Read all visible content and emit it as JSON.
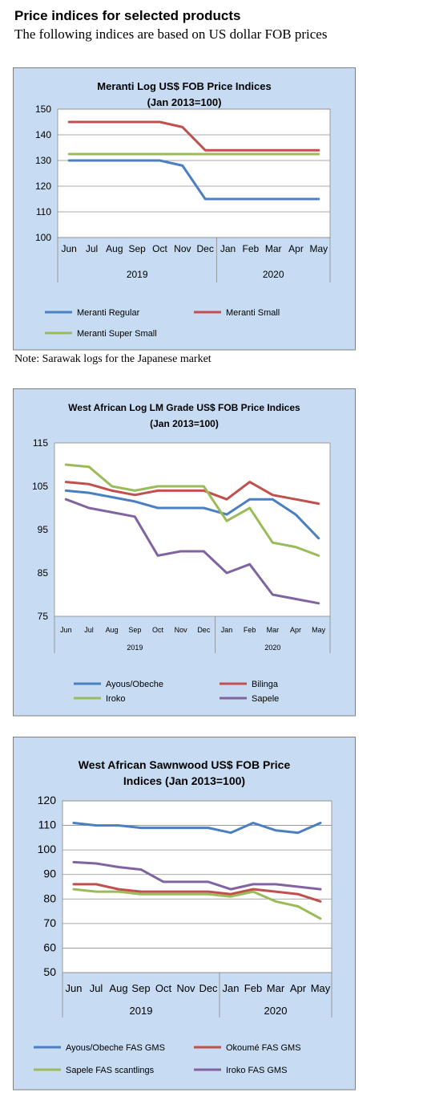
{
  "page": {
    "heading": "Price indices for selected products",
    "subheading": "The following indices are based on US dollar FOB prices",
    "note": "Note: Sarawak logs for the Japanese market"
  },
  "colors": {
    "panel_bg": "#c7dcf2",
    "blue": "#4a7fc1",
    "red": "#c0504d",
    "green": "#9bbb59",
    "purple": "#8064a2"
  },
  "chart_data": [
    {
      "type": "line",
      "title": "Meranti Log US$ FOB Price Indices",
      "subtitle": "(Jan 2013=100)",
      "categories": [
        "Jun",
        "Jul",
        "Aug",
        "Sep",
        "Oct",
        "Nov",
        "Dec",
        "Jan",
        "Feb",
        "Mar",
        "Apr",
        "May"
      ],
      "groups": [
        {
          "label": "2019",
          "from": 0,
          "to": 6
        },
        {
          "label": "2020",
          "from": 7,
          "to": 11
        }
      ],
      "yticks": [
        100,
        110,
        120,
        130,
        140,
        150
      ],
      "ylim": [
        100,
        150
      ],
      "grid": true,
      "legend_position": "bottom",
      "series": [
        {
          "name": "Meranti Regular",
          "color": "#4a7fc1",
          "values": [
            130,
            130,
            130,
            130,
            130,
            128,
            115,
            115,
            115,
            115,
            115,
            115
          ]
        },
        {
          "name": "Meranti Small",
          "color": "#c0504d",
          "values": [
            145,
            145,
            145,
            145,
            145,
            143,
            134,
            134,
            134,
            134,
            134,
            134
          ]
        },
        {
          "name": "Meranti Super Small",
          "color": "#9bbb59",
          "values": [
            132.5,
            132.5,
            132.5,
            132.5,
            132.5,
            132.5,
            132.5,
            132.5,
            132.5,
            132.5,
            132.5,
            132.5
          ]
        }
      ]
    },
    {
      "type": "line",
      "title": "West African Log LM Grade US$ FOB Price Indices",
      "subtitle": "(Jan 2013=100)",
      "categories": [
        "Jun",
        "Jul",
        "Aug",
        "Sep",
        "Oct",
        "Nov",
        "Dec",
        "Jan",
        "Feb",
        "Mar",
        "Apr",
        "May"
      ],
      "groups": [
        {
          "label": "2019",
          "from": 0,
          "to": 6
        },
        {
          "label": "2020",
          "from": 7,
          "to": 11
        }
      ],
      "yticks": [
        75,
        85,
        95,
        105,
        115
      ],
      "ylim": [
        75,
        115
      ],
      "grid": false,
      "legend_position": "bottom",
      "series": [
        {
          "name": "Ayous/Obeche",
          "color": "#4a7fc1",
          "values": [
            104,
            103.5,
            102.5,
            101.5,
            100,
            100,
            100,
            98.5,
            102,
            102,
            98.5,
            93
          ]
        },
        {
          "name": "Bilinga",
          "color": "#c0504d",
          "values": [
            106,
            105.5,
            104,
            103,
            104,
            104,
            104,
            102,
            106,
            103,
            102,
            101
          ]
        },
        {
          "name": "Iroko",
          "color": "#9bbb59",
          "values": [
            110,
            109.5,
            105,
            104,
            105,
            105,
            105,
            97,
            100,
            92,
            91,
            89
          ]
        },
        {
          "name": "Sapele",
          "color": "#8064a2",
          "values": [
            102,
            100,
            99,
            98,
            89,
            90,
            90,
            85,
            87,
            80,
            79,
            78
          ]
        }
      ]
    },
    {
      "type": "line",
      "title": "West African Sawnwood US$ FOB Price",
      "subtitle": "Indices (Jan 2013=100)",
      "categories": [
        "Jun",
        "Jul",
        "Aug",
        "Sep",
        "Oct",
        "Nov",
        "Dec",
        "Jan",
        "Feb",
        "Mar",
        "Apr",
        "May"
      ],
      "groups": [
        {
          "label": "2019",
          "from": 0,
          "to": 6
        },
        {
          "label": "2020",
          "from": 7,
          "to": 11
        }
      ],
      "yticks": [
        50,
        60,
        70,
        80,
        90,
        100,
        110,
        120
      ],
      "ylim": [
        50,
        120
      ],
      "grid": true,
      "legend_position": "bottom",
      "series": [
        {
          "name": "Ayous/Obeche FAS GMS",
          "color": "#4a7fc1",
          "values": [
            111,
            110,
            110,
            109,
            109,
            109,
            109,
            107,
            111,
            108,
            107,
            111
          ]
        },
        {
          "name": "Okoumé FAS GMS",
          "color": "#c0504d",
          "values": [
            86,
            86,
            84,
            83,
            83,
            83,
            83,
            82,
            84,
            83,
            82,
            79
          ]
        },
        {
          "name": "Sapele FAS scantlings",
          "color": "#9bbb59",
          "values": [
            84,
            83,
            83,
            82,
            82,
            82,
            82,
            81,
            83,
            79,
            77,
            72
          ]
        },
        {
          "name": "Iroko FAS GMS",
          "color": "#8064a2",
          "values": [
            95,
            94.5,
            93,
            92,
            87,
            87,
            87,
            84,
            86,
            86,
            85,
            84
          ]
        }
      ]
    }
  ]
}
